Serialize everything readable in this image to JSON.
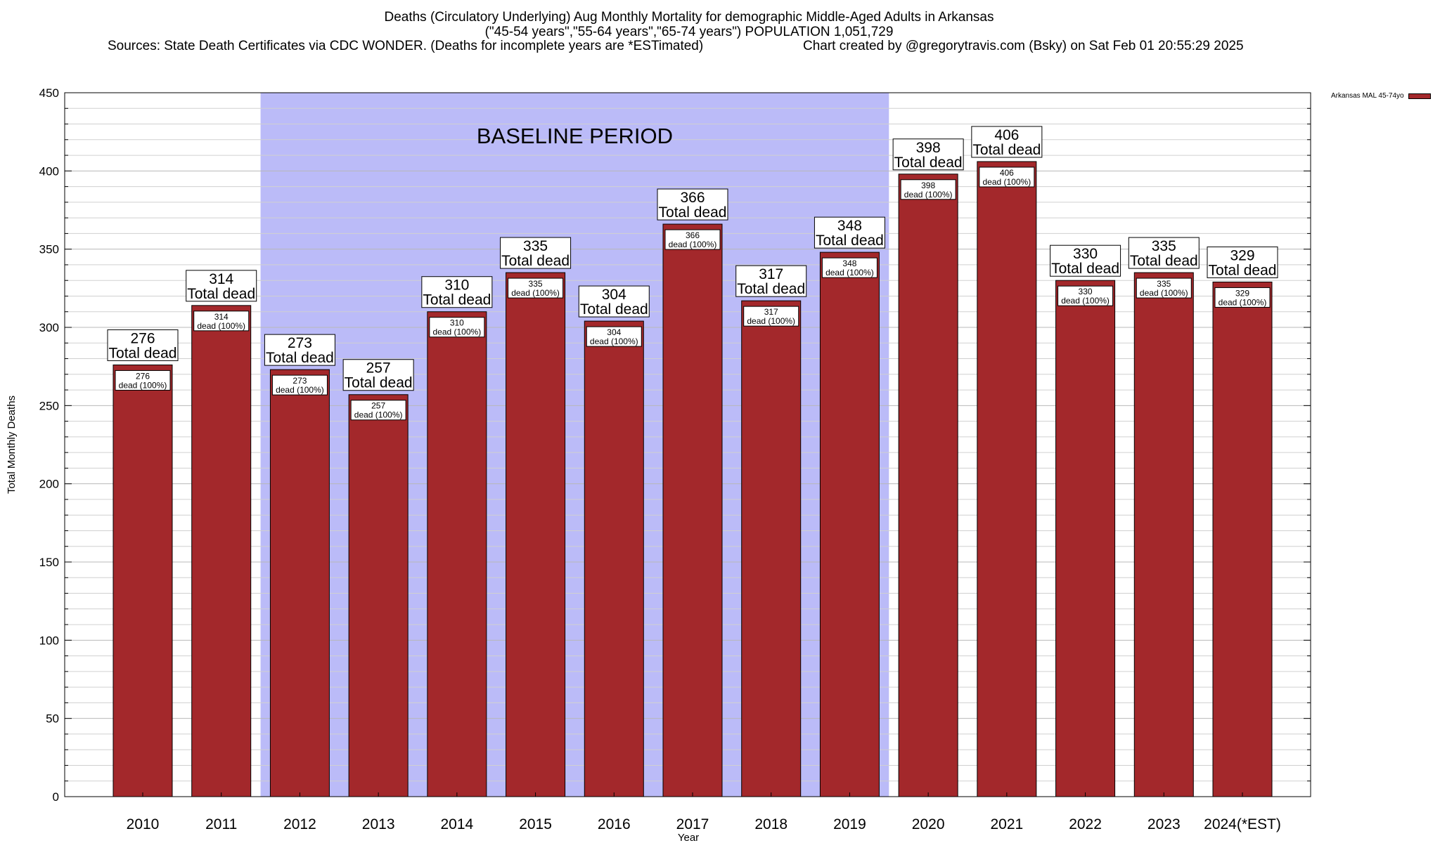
{
  "header": {
    "title_line1": "Deaths (Circulatory Underlying) Aug Monthly Mortality for demographic Middle-Aged Adults in Arkansas",
    "title_line2": "(\"45-54 years\",\"55-64 years\",\"65-74 years\") POPULATION 1,051,729",
    "sources": "Sources: State Death Certificates via CDC WONDER. (Deaths for incomplete years are *ESTimated)",
    "credit": "Chart created by @gregorytravis.com (Bsky) on Sat Feb 01 20:55:29 2025"
  },
  "legend": {
    "label": "Arkansas MAL 45-74yo",
    "color": "#a3282b"
  },
  "baseline": {
    "label": "BASELINE PERIOD",
    "start_category": "2012",
    "end_category": "2019",
    "color": "#bbbbf8"
  },
  "chart_data": {
    "type": "bar",
    "categories": [
      "2010",
      "2011",
      "2012",
      "2013",
      "2014",
      "2015",
      "2016",
      "2017",
      "2018",
      "2019",
      "2020",
      "2021",
      "2022",
      "2023",
      "2024(*EST)"
    ],
    "series": [
      {
        "name": "Arkansas MAL 45-74yo",
        "values": [
          276,
          314,
          273,
          257,
          310,
          335,
          304,
          366,
          317,
          348,
          398,
          406,
          330,
          335,
          329
        ]
      }
    ],
    "top_label_line1": [
      "276",
      "314",
      "273",
      "257",
      "310",
      "335",
      "304",
      "366",
      "317",
      "348",
      "398",
      "406",
      "330",
      "335",
      "329"
    ],
    "top_label_line2": "Total dead",
    "inner_label_line1": [
      "276",
      "314",
      "273",
      "257",
      "310",
      "335",
      "304",
      "366",
      "317",
      "348",
      "398",
      "406",
      "330",
      "335",
      "329"
    ],
    "inner_label_line2": [
      "dead (100%)",
      "dead (100%)",
      "dead (100%)",
      "dead (100%)",
      "dead (100%)",
      "dead (100%)",
      "dead (100%)",
      "dead (100%)",
      "dead (100%)",
      "dead (100%)",
      "dead (100%)",
      "dead (100%)",
      "dead (100%)",
      "dead (100%)",
      "dead (100%)"
    ],
    "xlabel": "Year",
    "ylabel": "Total Monthly Deaths",
    "ylim": [
      0,
      450
    ],
    "yticks": [
      "0",
      "50",
      "100",
      "150",
      "200",
      "250",
      "300",
      "350",
      "400",
      "450"
    ],
    "grid": true,
    "legend_position": "top-right",
    "bar_color": "#a3282b"
  }
}
